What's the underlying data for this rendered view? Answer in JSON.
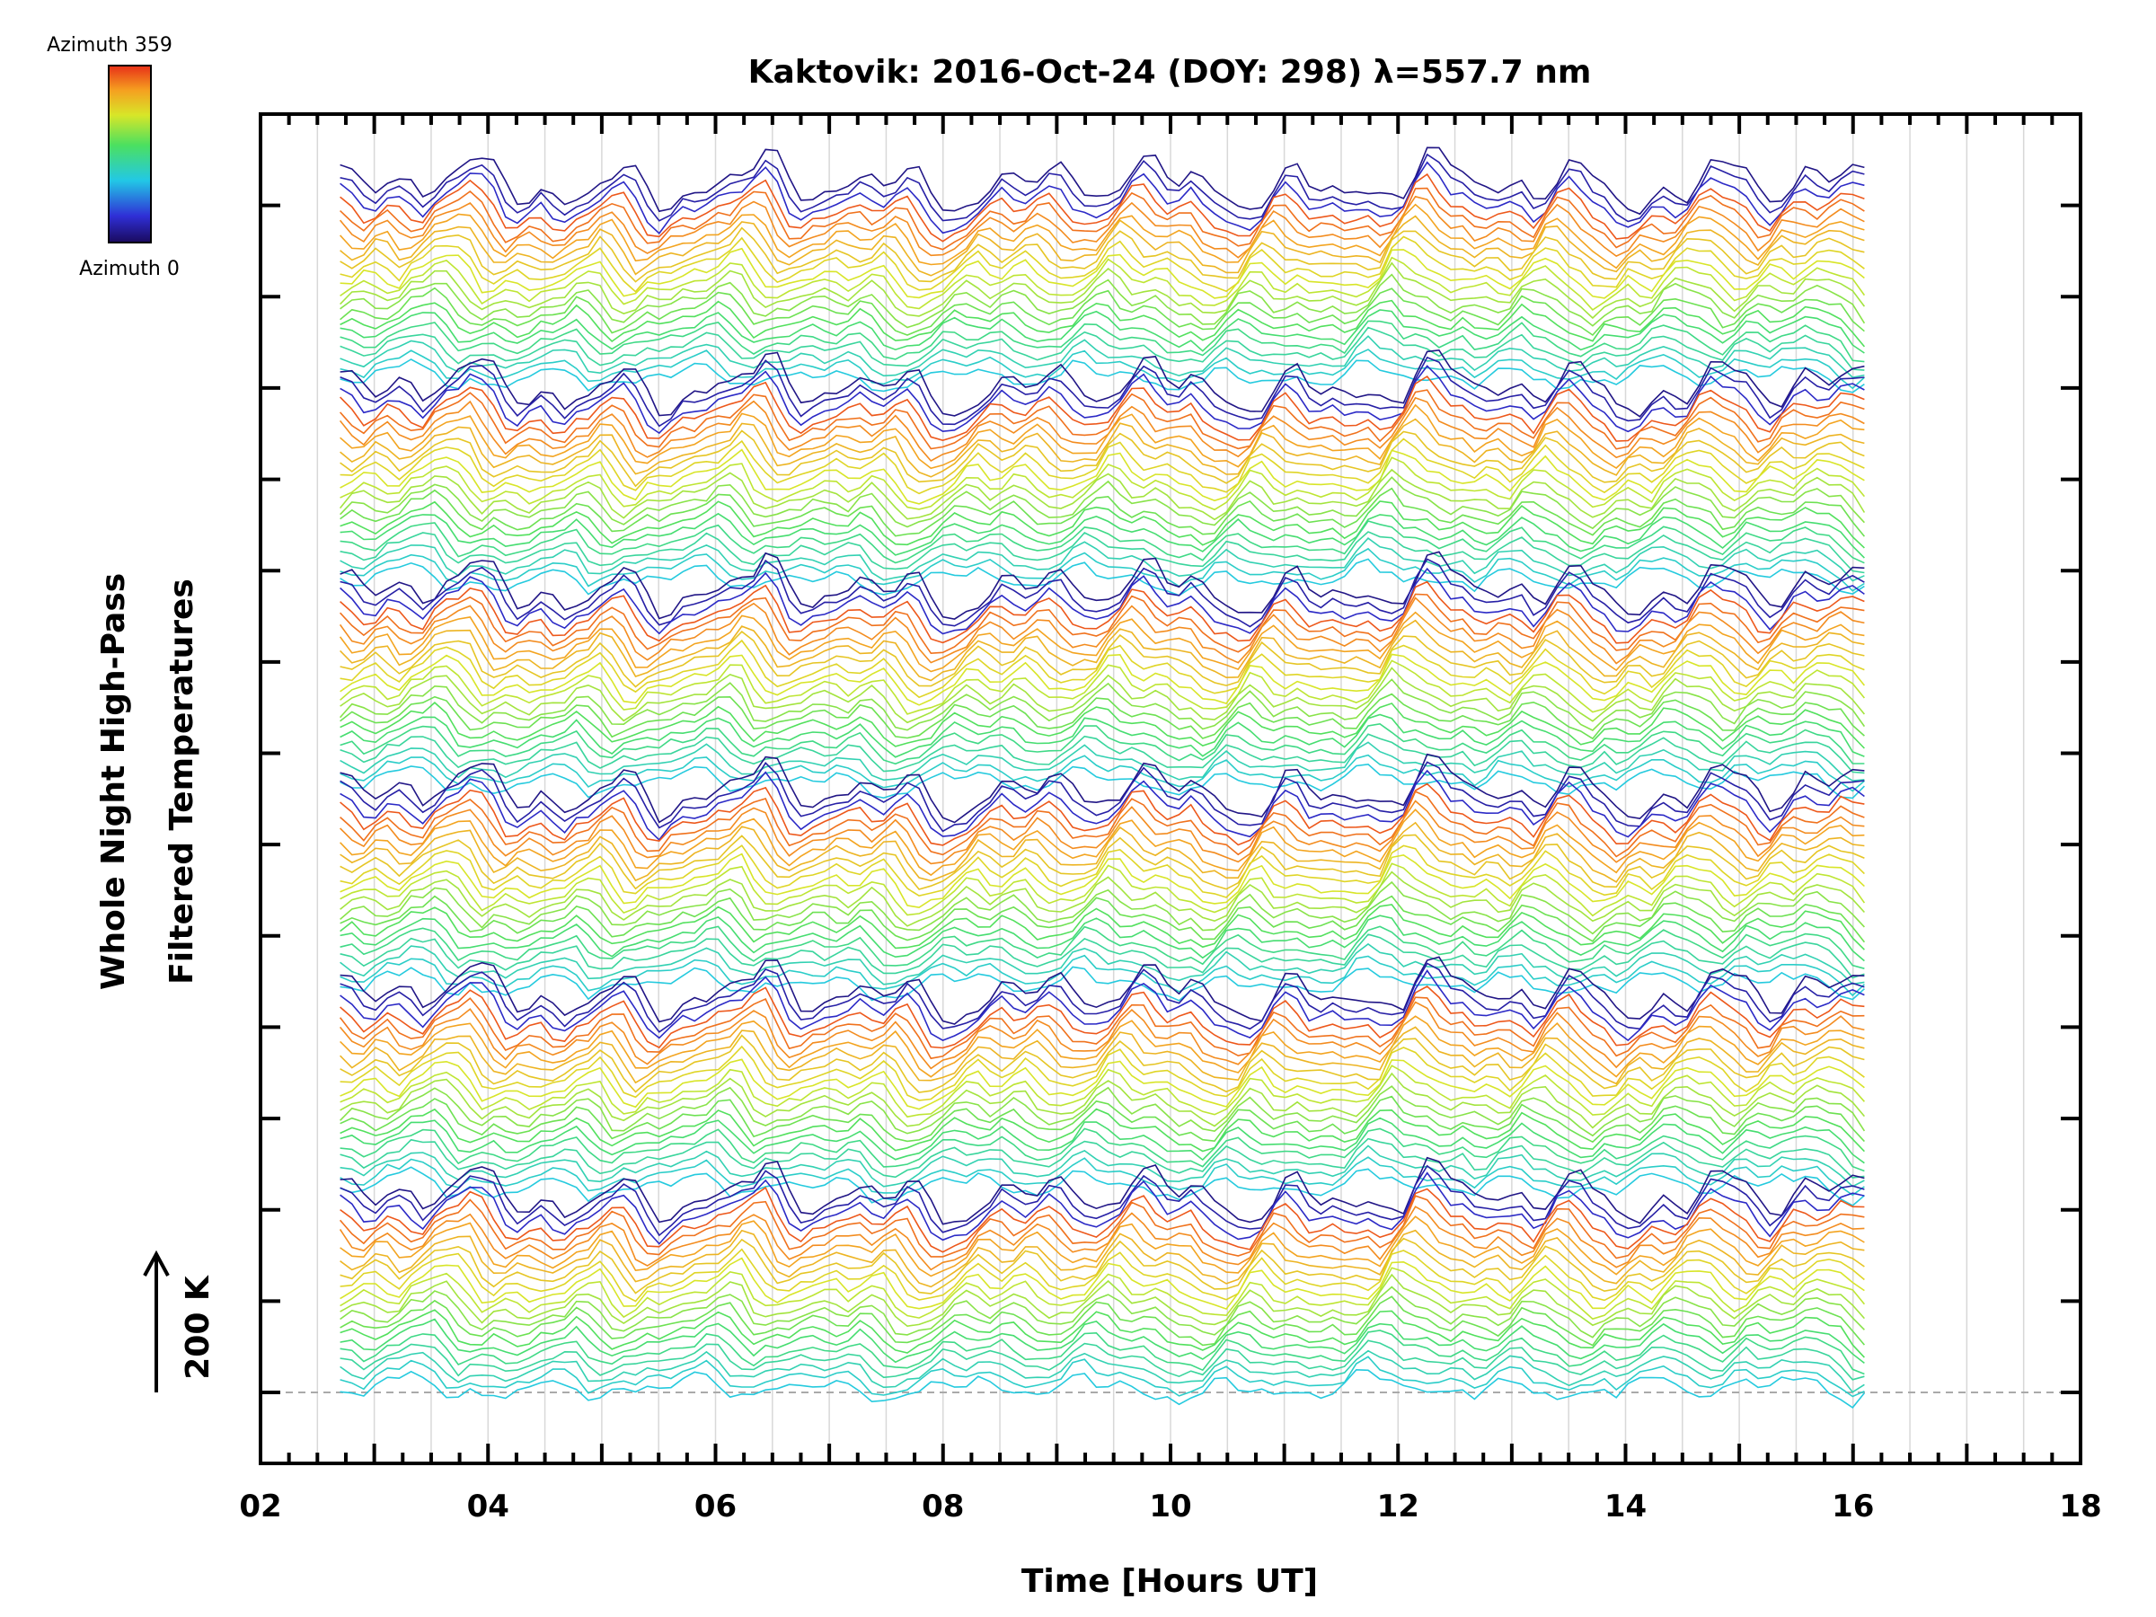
{
  "chart_data": {
    "type": "line",
    "title": "Kaktovik: 2016-Oct-24 (DOY: 298) λ=557.7 nm",
    "xlabel": "Time [Hours UT]",
    "ylabel_line1": "Whole Night High-Pass",
    "ylabel_line2": "Filtered Temperatures",
    "scale_label": "200 K",
    "xlim": [
      2,
      18
    ],
    "x_ticks": [
      "02",
      "04",
      "06",
      "08",
      "10",
      "12",
      "14",
      "16",
      "18"
    ],
    "x_start": 2.7,
    "x_end": 16.1,
    "colorbar": {
      "top_label": "Azimuth 359",
      "bottom_label": "Azimuth 0"
    },
    "stacked_series_groups": 6,
    "lines_per_group": 22,
    "grid": "vertical",
    "reference_line": "dashed at baseline"
  }
}
